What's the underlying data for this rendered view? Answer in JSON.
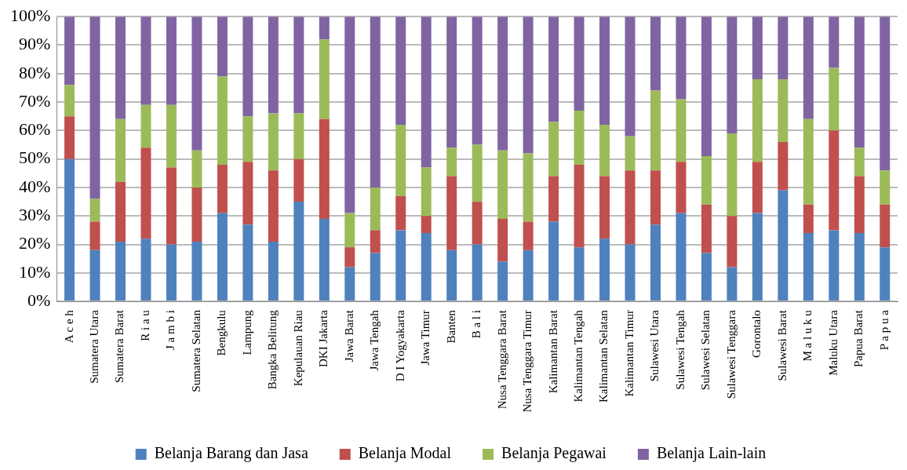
{
  "chart_data": {
    "type": "bar",
    "stacked": true,
    "categories": [
      "A c e h",
      "Sumatera Utara",
      "Sumatera Barat",
      "R i a u",
      "J a m b i",
      "Sumatera Selatan",
      "Bengkulu",
      "Lampung",
      "Bangka Belitung",
      "Kepulauan Riau",
      "DKI Jakarta",
      "Jawa Barat",
      "Jawa Tengah",
      "D I Yogyakarta",
      "Jawa Timur",
      "Banten",
      "B a l i",
      "Nusa Tenggara Barat",
      "Nusa Tenggara Timur",
      "Kalimantan Barat",
      "Kalimantan Tengah",
      "Kalimantan Selatan",
      "Kalimantan Timur",
      "Sulawesi Utara",
      "Sulawesi Tengah",
      "Sulawesi Selatan",
      "Sulawesi Tenggara",
      "Gorontalo",
      "Sulawesi Barat",
      "M a l u k u",
      "Maluku Utara",
      "Papua Barat",
      "P a p u a"
    ],
    "series": [
      {
        "name": "Belanja Barang dan Jasa",
        "color": "#4f81bd",
        "values": [
          50,
          18,
          21,
          22,
          20,
          21,
          31,
          27,
          21,
          35,
          29,
          12,
          17,
          25,
          24,
          18,
          20,
          14,
          18,
          28,
          19,
          22,
          20,
          27,
          31,
          17,
          12,
          31,
          39,
          24,
          25,
          24,
          19
        ]
      },
      {
        "name": "Belanja Modal",
        "color": "#c0504d",
        "values": [
          15,
          10,
          21,
          32,
          27,
          19,
          17,
          22,
          25,
          15,
          35,
          7,
          8,
          12,
          6,
          26,
          15,
          15,
          10,
          16,
          29,
          22,
          26,
          19,
          18,
          17,
          18,
          18,
          17,
          10,
          35,
          20,
          15
        ]
      },
      {
        "name": "Belanja Pegawai",
        "color": "#9bbb59",
        "values": [
          11,
          8,
          22,
          15,
          22,
          13,
          31,
          16,
          20,
          16,
          28,
          12,
          15,
          25,
          17,
          10,
          20,
          24,
          24,
          19,
          19,
          18,
          12,
          28,
          22,
          17,
          29,
          29,
          22,
          30,
          22,
          10,
          12
        ]
      },
      {
        "name": "Belanja Lain-lain",
        "color": "#8064a2",
        "values": [
          24,
          64,
          36,
          31,
          31,
          47,
          21,
          35,
          34,
          34,
          8,
          69,
          60,
          38,
          53,
          46,
          45,
          47,
          48,
          37,
          33,
          38,
          42,
          26,
          29,
          49,
          41,
          22,
          22,
          36,
          18,
          46,
          54
        ]
      }
    ],
    "ylim": [
      0,
      100
    ],
    "yticks": [
      {
        "value": 0,
        "label": "0%"
      },
      {
        "value": 10,
        "label": "10%"
      },
      {
        "value": 20,
        "label": "20%"
      },
      {
        "value": 30,
        "label": "30%"
      },
      {
        "value": 40,
        "label": "40%"
      },
      {
        "value": 50,
        "label": "50%"
      },
      {
        "value": 60,
        "label": "60%"
      },
      {
        "value": 70,
        "label": "70%"
      },
      {
        "value": 80,
        "label": "80%"
      },
      {
        "value": 90,
        "label": "90%"
      },
      {
        "value": 100,
        "label": "100%"
      }
    ],
    "grid": "y",
    "legend": "bottom"
  }
}
